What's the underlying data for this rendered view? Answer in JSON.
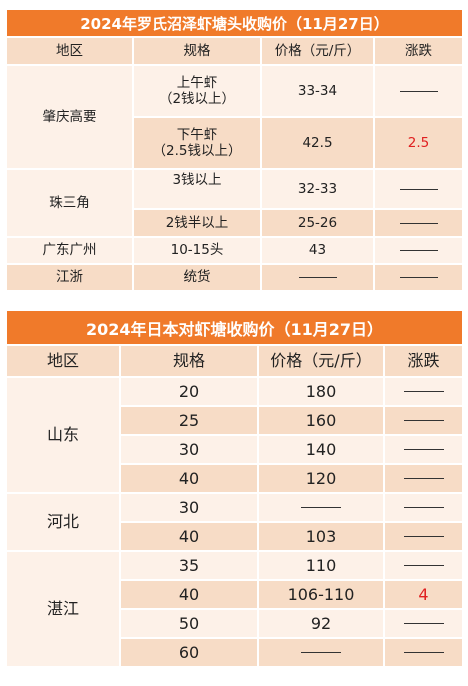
{
  "table1": {
    "title": "2024年罗氏沼泽虾塘头收购价（11月27日）",
    "headers": [
      "地区",
      "规格",
      "价格（元/斤）",
      "涨跌"
    ],
    "cells": {
      "r1_region": "肇庆高要",
      "r1_spec": "上午虾\n（2钱以上）",
      "r1_price": "33-34",
      "r2_spec": "下午虾\n（2.5钱以上）",
      "r2_price": "42.5",
      "r2_change": "2.5",
      "r3_region": "珠三角",
      "r3_spec": "3钱以上",
      "r3_price": "32-33",
      "r4_spec": "2钱半以上",
      "r4_price": "25-26",
      "r5_region": "广东广州",
      "r5_spec": "10-15头",
      "r5_price": "43",
      "r6_region": "江浙",
      "r6_spec": "统货"
    }
  },
  "table2": {
    "title": "2024年日本对虾塘收购价（11月27日）",
    "headers": [
      "地区",
      "规格",
      "价格（元/斤）",
      "涨跌"
    ],
    "regions": [
      "山东",
      "河北",
      "湛江"
    ],
    "rows": [
      {
        "spec": "20",
        "price": "180",
        "change": ""
      },
      {
        "spec": "25",
        "price": "160",
        "change": ""
      },
      {
        "spec": "30",
        "price": "140",
        "change": ""
      },
      {
        "spec": "40",
        "price": "120",
        "change": ""
      },
      {
        "spec": "30",
        "price": "",
        "change": ""
      },
      {
        "spec": "40",
        "price": "103",
        "change": ""
      },
      {
        "spec": "35",
        "price": "110",
        "change": ""
      },
      {
        "spec": "40",
        "price": "106-110",
        "change": "4"
      },
      {
        "spec": "50",
        "price": "92",
        "change": ""
      },
      {
        "spec": "60",
        "price": "",
        "change": ""
      }
    ]
  },
  "colors": {
    "title_bg": "#f07a2a",
    "header_bg": "#f7dcc6",
    "light_row": "#fdf1e8",
    "rise": "#e02020"
  }
}
